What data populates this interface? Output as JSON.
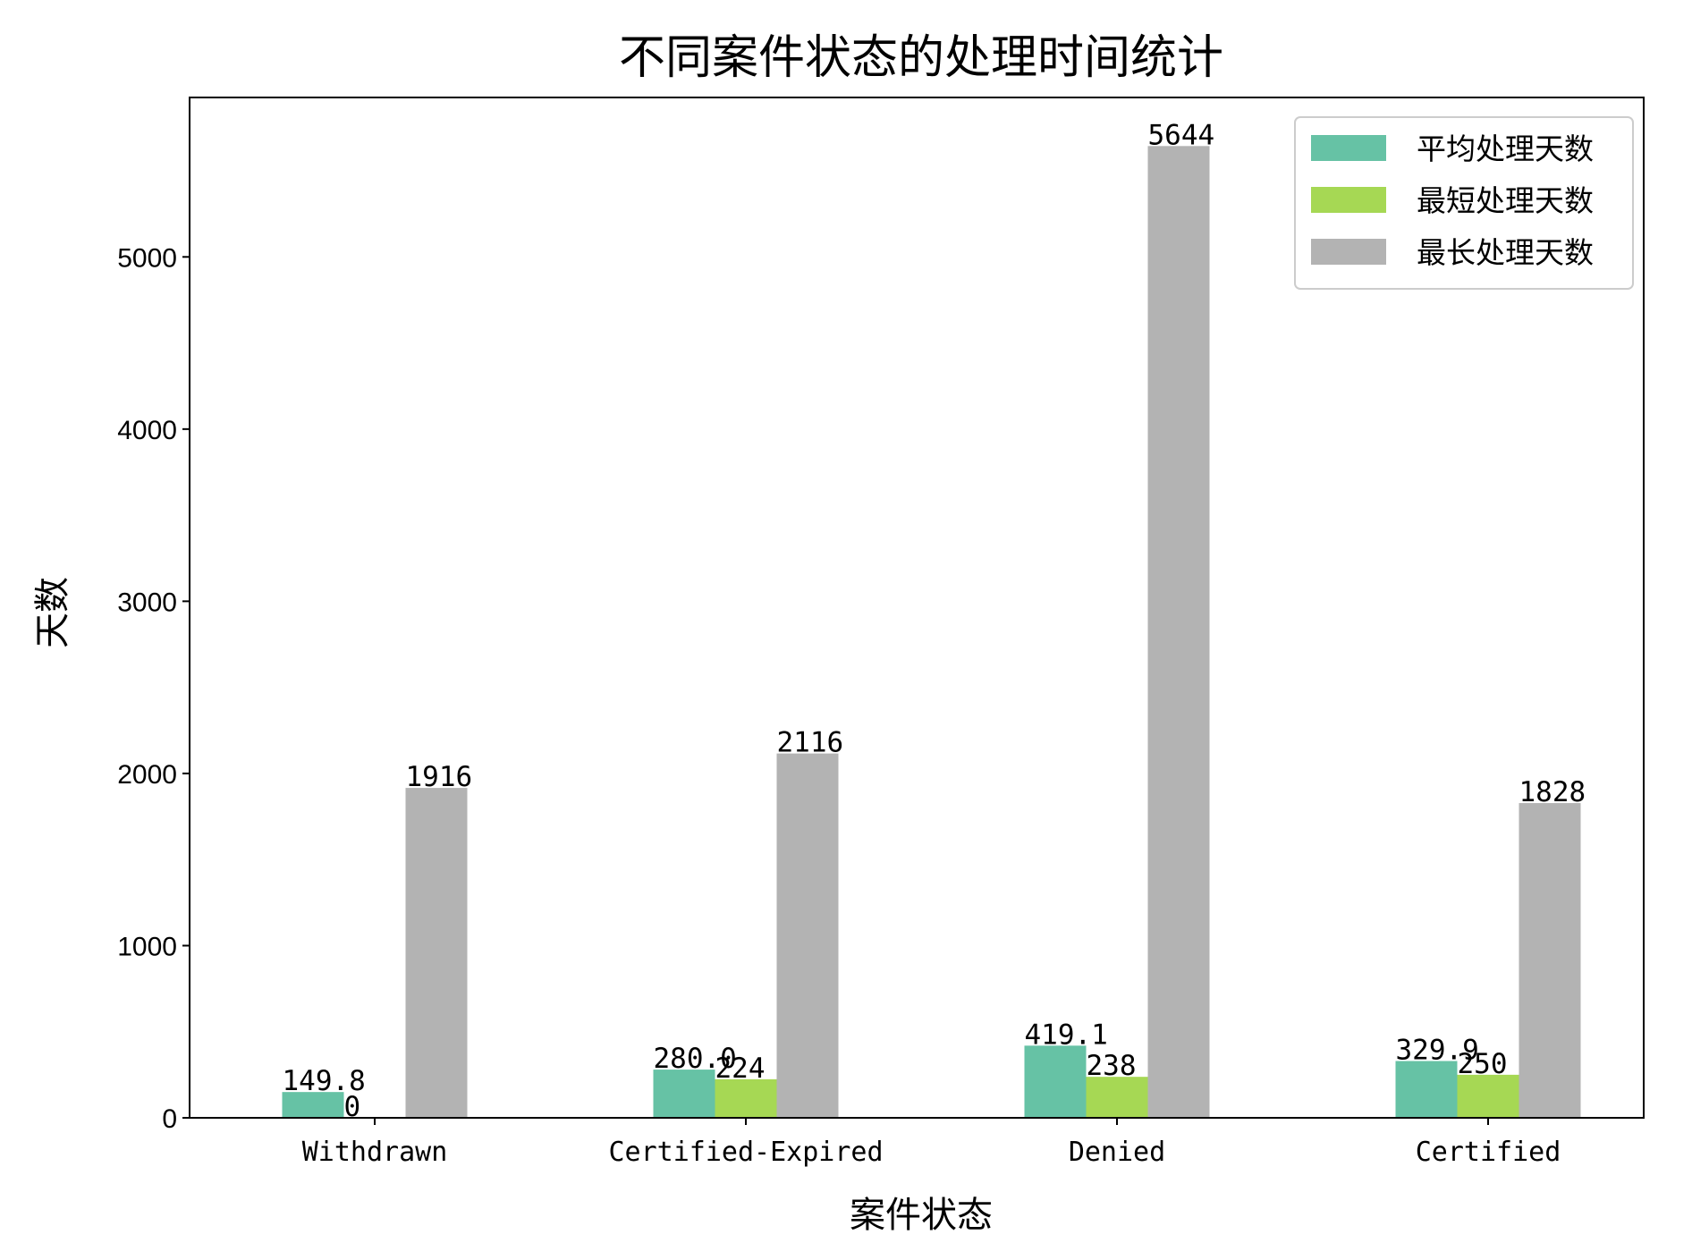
{
  "chart_data": {
    "type": "bar",
    "title": "不同案件状态的处理时间统计",
    "xlabel": "案件状态",
    "ylabel": "天数",
    "categories": [
      "Withdrawn",
      "Certified-Expired",
      "Denied",
      "Certified"
    ],
    "series": [
      {
        "name": "平均处理天数",
        "values": [
          149.8,
          280.0,
          419.1,
          329.9
        ],
        "labels": [
          "149.8",
          "280.0",
          "419.1",
          "329.9"
        ],
        "color": "#66c2a5"
      },
      {
        "name": "最短处理天数",
        "values": [
          0,
          224,
          238,
          250
        ],
        "labels": [
          "0",
          "224",
          "238",
          "250"
        ],
        "color": "#a6d854"
      },
      {
        "name": "最长处理天数",
        "values": [
          1916,
          2116,
          5644,
          1828
        ],
        "labels": [
          "1916",
          "2116",
          "5644",
          "1828"
        ],
        "color": "#b3b3b3"
      }
    ],
    "ylim": [
      0,
      5926
    ],
    "yticks": [
      0,
      1000,
      2000,
      3000,
      4000,
      5000
    ],
    "legend": "top-right",
    "grid": false
  }
}
